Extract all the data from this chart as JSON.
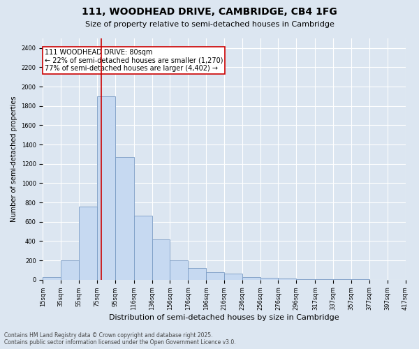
{
  "title": "111, WOODHEAD DRIVE, CAMBRIDGE, CB4 1FG",
  "subtitle": "Size of property relative to semi-detached houses in Cambridge",
  "xlabel": "Distribution of semi-detached houses by size in Cambridge",
  "ylabel": "Number of semi-detached properties",
  "footnote1": "Contains HM Land Registry data © Crown copyright and database right 2025.",
  "footnote2": "Contains public sector information licensed under the Open Government Licence v3.0.",
  "annotation_title": "111 WOODHEAD DRIVE: 80sqm",
  "annotation_line1": "← 22% of semi-detached houses are smaller (1,270)",
  "annotation_line2": "77% of semi-detached houses are larger (4,402) →",
  "property_size": 80,
  "bar_left_edges": [
    15,
    35,
    55,
    75,
    95,
    116,
    136,
    156,
    176,
    196,
    216,
    236,
    256,
    276,
    296,
    317,
    337,
    357,
    377,
    397
  ],
  "bar_widths": [
    20,
    20,
    20,
    20,
    21,
    20,
    20,
    20,
    20,
    20,
    20,
    20,
    20,
    20,
    21,
    20,
    20,
    20,
    20,
    20
  ],
  "bar_heights": [
    30,
    200,
    760,
    1900,
    1270,
    660,
    420,
    200,
    120,
    80,
    60,
    30,
    20,
    10,
    5,
    5,
    3,
    2,
    1,
    1
  ],
  "tick_labels": [
    "15sqm",
    "35sqm",
    "55sqm",
    "75sqm",
    "95sqm",
    "116sqm",
    "136sqm",
    "156sqm",
    "176sqm",
    "196sqm",
    "216sqm",
    "236sqm",
    "256sqm",
    "276sqm",
    "296sqm",
    "317sqm",
    "337sqm",
    "357sqm",
    "377sqm",
    "397sqm",
    "417sqm"
  ],
  "bar_color": "#c6d9f1",
  "bar_edge_color": "#7a9cc4",
  "line_color": "#cc0000",
  "background_color": "#dce6f1",
  "grid_color": "#ffffff",
  "ylim": [
    0,
    2500
  ],
  "yticks": [
    0,
    200,
    400,
    600,
    800,
    1000,
    1200,
    1400,
    1600,
    1800,
    2000,
    2200,
    2400
  ],
  "title_fontsize": 10,
  "subtitle_fontsize": 8,
  "xlabel_fontsize": 8,
  "ylabel_fontsize": 7,
  "tick_fontsize": 6,
  "annot_fontsize": 7,
  "footnote_fontsize": 5.5
}
